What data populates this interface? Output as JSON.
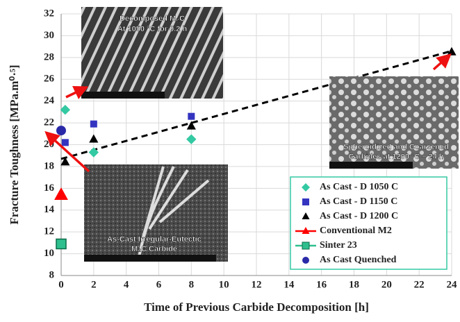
{
  "chart_data": {
    "type": "scatter",
    "x_label": "Time of Previous Carbide Decomposition [h]",
    "y_label": "Fracture Toughness [MPa.m⁰·⁵]",
    "xlim": [
      0,
      24
    ],
    "xticks": [
      0,
      2,
      4,
      6,
      8,
      10,
      12,
      14,
      16,
      18,
      20,
      22,
      24
    ],
    "ylim": [
      8,
      32
    ],
    "yticks": [
      8,
      10,
      12,
      14,
      16,
      18,
      20,
      22,
      24,
      26,
      28,
      30,
      32
    ],
    "grid": true,
    "series": [
      {
        "name": "As Cast - D 1050 C",
        "color": "#33c9a3",
        "marker": "diamond",
        "x": [
          0.25,
          2,
          8
        ],
        "values": [
          23.2,
          19.3,
          20.5
        ]
      },
      {
        "name": "As Cast - D 1150 C",
        "color": "#3434c0",
        "marker": "square",
        "x": [
          0.25,
          2,
          8
        ],
        "values": [
          20.2,
          21.9,
          22.6
        ]
      },
      {
        "name": "As Cast - D 1200 C",
        "color": "#000000",
        "marker": "triangle",
        "x": [
          0.25,
          2,
          8,
          24
        ],
        "values": [
          18.4,
          20.5,
          21.7,
          28.5
        ]
      },
      {
        "name": "Conventional M2",
        "color": "#ff0000",
        "marker": "triangle",
        "legend_line": true,
        "x": [
          0
        ],
        "values": [
          15.4
        ]
      },
      {
        "name": "Sinter 23",
        "color": "#2fbf8f",
        "marker": "square",
        "legend_line": true,
        "x": [
          0
        ],
        "values": [
          10.9
        ]
      },
      {
        "name": "As Cast Quenched",
        "color": "#2a2aa8",
        "marker": "circle",
        "x": [
          0
        ],
        "values": [
          21.3
        ]
      }
    ],
    "trendline": {
      "x": [
        0,
        24
      ],
      "values": [
        18.7,
        28.6
      ]
    },
    "insets": [
      {
        "caption": [
          "Decomposed M₂C",
          "At 1050 °C for 0.2 h"
        ]
      },
      {
        "caption": [
          "Spheroidized and Coarsened",
          "Carbides at 1200 °C – 24 h"
        ]
      },
      {
        "caption": [
          "As-Cast Irregular-Eutectic",
          "M₂C Carbide"
        ]
      }
    ]
  }
}
